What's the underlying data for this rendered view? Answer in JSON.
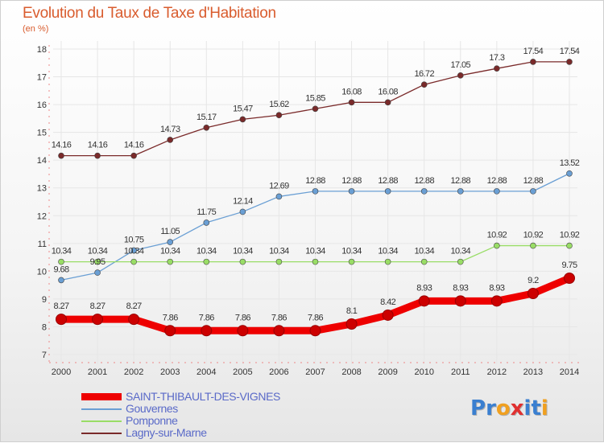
{
  "chart_data": {
    "type": "line",
    "title": "Evolution du Taux de Taxe d'Habitation",
    "unit": "(en %)",
    "x": [
      "2000",
      "2001",
      "2002",
      "2003",
      "2004",
      "2005",
      "2006",
      "2007",
      "2008",
      "2009",
      "2010",
      "2011",
      "2012",
      "2013",
      "2014"
    ],
    "ylim": [
      7,
      18
    ],
    "yticks": [
      "7",
      "8",
      "9",
      "10",
      "11",
      "12",
      "13",
      "14",
      "15",
      "16",
      "17",
      "18"
    ],
    "grid": true,
    "legend_position": "bottom-left",
    "series": [
      {
        "name": "Lagny-sur-Marne",
        "color": "#7a2a2a",
        "values": [
          14.16,
          14.16,
          14.16,
          14.73,
          15.17,
          15.47,
          15.62,
          15.85,
          16.08,
          16.08,
          16.72,
          17.05,
          17.3,
          17.54,
          17.54
        ],
        "labels": [
          "14.16",
          "14.16",
          "14.16",
          "14.73",
          "15.17",
          "15.47",
          "15.62",
          "15.85",
          "16.08",
          "16.08",
          "16.72",
          "17.05",
          "17.3",
          "17.54",
          "17.54"
        ]
      },
      {
        "name": "Gouvernes",
        "color": "#6a9fd4",
        "values": [
          9.68,
          9.95,
          10.75,
          11.05,
          11.75,
          12.14,
          12.69,
          12.88,
          12.88,
          12.88,
          12.88,
          12.88,
          12.88,
          12.88,
          13.52
        ],
        "labels": [
          "9.68",
          "9.95",
          "10.75",
          "11.05",
          "11.75",
          "12.14",
          "12.69",
          "12.88",
          "12.88",
          "12.88",
          "12.88",
          "12.88",
          "12.88",
          "12.88",
          "13.52"
        ]
      },
      {
        "name": "Pomponne",
        "color": "#99dd66",
        "values": [
          10.34,
          10.34,
          10.34,
          10.34,
          10.34,
          10.34,
          10.34,
          10.34,
          10.34,
          10.34,
          10.34,
          10.34,
          10.92,
          10.92,
          10.92
        ],
        "labels": [
          "10.34",
          "10.34",
          "10.34",
          "10.34",
          "10.34",
          "10.34",
          "10.34",
          "10.34",
          "10.34",
          "10.34",
          "10.34",
          "10.34",
          "10.92",
          "10.92",
          "10.92"
        ]
      },
      {
        "name": "SAINT-THIBAULT-DES-VIGNES",
        "color": "#ee0000",
        "highlight": true,
        "values": [
          8.27,
          8.27,
          8.27,
          7.86,
          7.86,
          7.86,
          7.86,
          7.86,
          8.1,
          8.42,
          8.93,
          8.93,
          8.93,
          9.2,
          9.75
        ],
        "labels": [
          "8.27",
          "8.27",
          "8.27",
          "7.86",
          "7.86",
          "7.86",
          "7.86",
          "7.86",
          "8.1",
          "8.42",
          "8.93",
          "8.93",
          "8.93",
          "9.2",
          "9.75"
        ]
      }
    ],
    "legend": [
      "SAINT-THIBAULT-DES-VIGNES",
      "Gouvernes",
      "Pomponne",
      "Lagny-sur-Marne"
    ]
  },
  "logo": {
    "letters": [
      "P",
      "r",
      "o",
      "x",
      "i",
      "t",
      "i"
    ],
    "colors": [
      "#3a7fd0",
      "#3a7fd0",
      "#f0a020",
      "#e03030",
      "#3a7fd0",
      "#3a7fd0",
      "#f0a020"
    ]
  }
}
